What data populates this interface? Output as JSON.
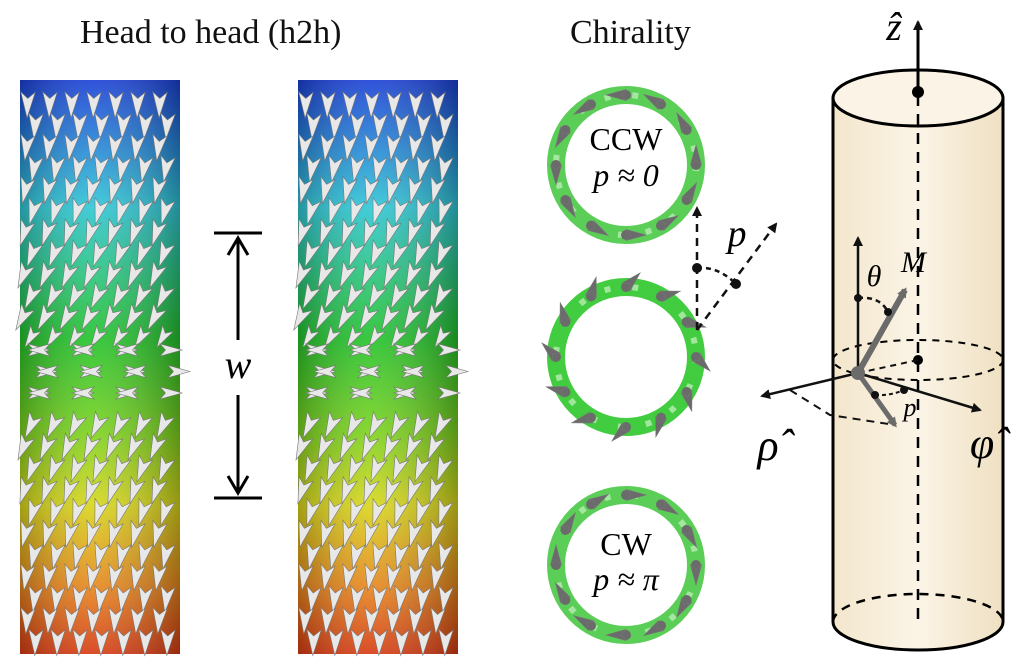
{
  "titles": {
    "head_to_head": "Head to head (h2h)",
    "chirality": "Chirality"
  },
  "labels": {
    "width": "w",
    "ccw": "CCW",
    "ccw_phase": "p ≈ 0",
    "cw": "CW",
    "cw_phase": "p ≈ π",
    "phase_angle": "p",
    "z_axis": "ẑ",
    "rho_axis": "ρ̂",
    "phi_axis": "φ̂",
    "theta": "θ",
    "magnetization": "M⃗",
    "phase_small": "p"
  },
  "colors": {
    "gradient_top": "#1a3fd6",
    "gradient_mid_cyan": "#2ec6d6",
    "gradient_mid_green": "#22c22a",
    "gradient_yellow": "#d8d61a",
    "gradient_orange": "#e6871c",
    "gradient_bottom": "#d63a12",
    "ring_green": "#3ec63a",
    "arrow_gray": "#6b6b6b",
    "cylinder_fill": "#f6ecd8"
  }
}
